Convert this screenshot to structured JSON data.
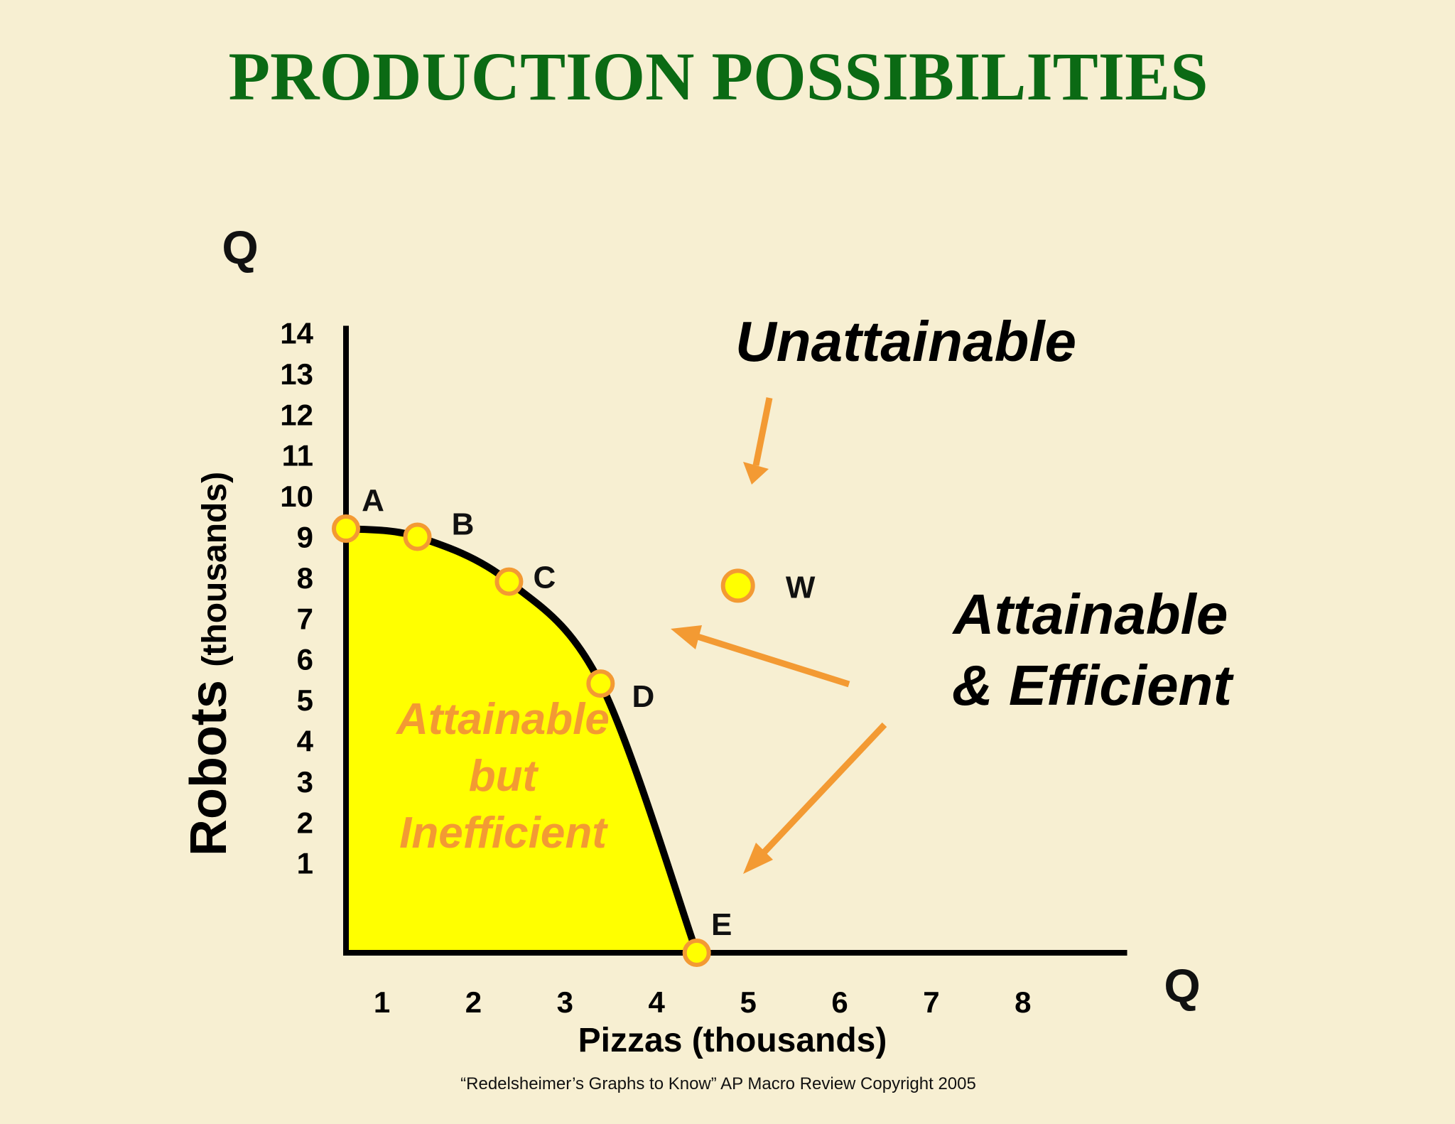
{
  "chart_data": {
    "type": "line",
    "title": "PRODUCTION POSSIBILITIES",
    "ylabel_main": "Robots",
    "ylabel_unit": "(thousands)",
    "xlabel": "Pizzas (thousands)",
    "y_axis_q": "Q",
    "x_axis_q": "Q",
    "x_ticks": [
      "1",
      "2",
      "3",
      "4",
      "5",
      "6",
      "7",
      "8"
    ],
    "y_ticks": [
      "1",
      "2",
      "3",
      "4",
      "5",
      "6",
      "7",
      "8",
      "9",
      "10",
      "11",
      "12",
      "13",
      "14"
    ],
    "xlim": [
      0.67,
      9.2
    ],
    "ylim": [
      -1.2,
      14
    ],
    "curve_points": [
      {
        "label": "A",
        "x": 0.67,
        "y": 9.2
      },
      {
        "label": "B",
        "x": 1.45,
        "y": 9.0
      },
      {
        "label": "C",
        "x": 2.45,
        "y": 7.9
      },
      {
        "label": "D",
        "x": 3.45,
        "y": 5.4
      },
      {
        "label": "E",
        "x": 4.5,
        "y": -1.2
      }
    ],
    "extra_points": [
      {
        "label": "W",
        "x": 4.95,
        "y": 7.8
      }
    ],
    "regions": {
      "unattainable": "Unattainable",
      "efficient": [
        "Attainable",
        "& Efficient"
      ],
      "inefficient": [
        "Attainable",
        "but",
        "Inefficient"
      ]
    },
    "colors": {
      "fill": "#ffff00",
      "curve": "#000000",
      "point_fill": "#ffff00",
      "point_stroke": "#f39a33",
      "arrow": "#f39a33",
      "title": "#0b6a14",
      "inside_text": "#f39a33"
    }
  },
  "footer": "“Redelsheimer’s Graphs to Know”  AP Macro Review Copyright 2005"
}
